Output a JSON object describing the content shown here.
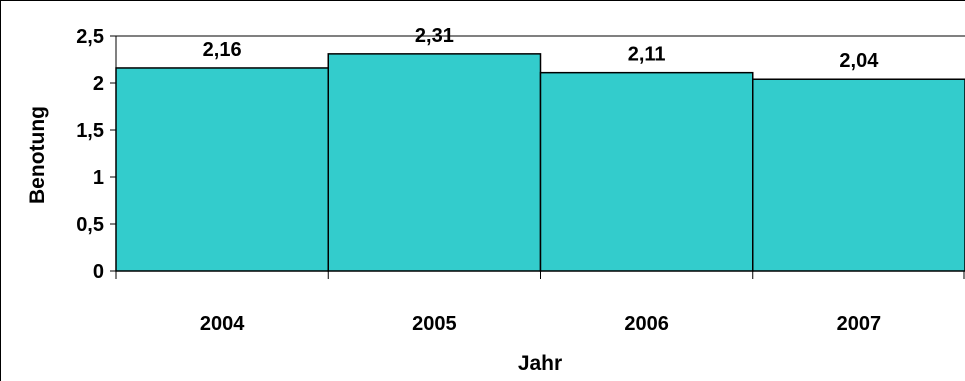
{
  "chart_data": {
    "type": "bar",
    "categories": [
      "2004",
      "2005",
      "2006",
      "2007"
    ],
    "values": [
      2.16,
      2.31,
      2.11,
      2.04
    ],
    "value_labels": [
      "2,16",
      "2,31",
      "2,11",
      "2,04"
    ],
    "xlabel": "Jahr",
    "ylabel": "Benotung",
    "ylim": [
      0,
      2.5
    ],
    "yticks": [
      0,
      0.5,
      1,
      1.5,
      2,
      2.5
    ],
    "ytick_labels": [
      "0",
      "0,5",
      "1",
      "1,5",
      "2",
      "2,5"
    ],
    "grid": true,
    "legend": "none",
    "bar_color": "#33CCCC",
    "edge_color": "#000000"
  }
}
